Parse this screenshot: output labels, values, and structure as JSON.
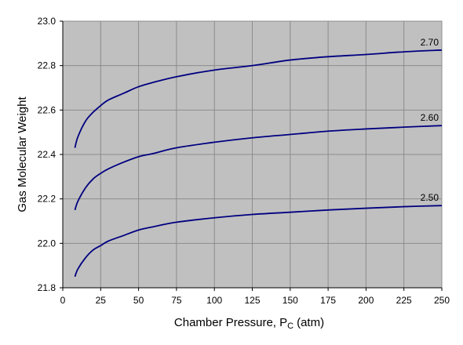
{
  "chart_data": {
    "type": "line",
    "xlabel": "Chamber Pressure, P",
    "xlabel_subscript": "C",
    "xlabel_unit": "(atm)",
    "ylabel": "Gas Molecular Weight",
    "xlim": [
      0,
      250
    ],
    "ylim": [
      21.8,
      23.0
    ],
    "x_ticks": [
      0,
      25,
      50,
      75,
      100,
      125,
      150,
      175,
      200,
      225,
      250
    ],
    "y_ticks": [
      21.8,
      22.0,
      22.2,
      22.4,
      22.6,
      22.8,
      23.0
    ],
    "x_tick_labels": [
      "0",
      "25",
      "50",
      "75",
      "100",
      "125",
      "150",
      "175",
      "200",
      "225",
      "250"
    ],
    "y_tick_labels": [
      "21.8",
      "22.0",
      "22.2",
      "22.4",
      "22.6",
      "22.8",
      "23.0"
    ],
    "grid": true,
    "plot_background": "#c0c0c0",
    "series_color": "#000080",
    "x": [
      8,
      10,
      15,
      20,
      25,
      30,
      40,
      50,
      60,
      75,
      100,
      125,
      150,
      175,
      200,
      225,
      250
    ],
    "series": [
      {
        "name": "2.70",
        "values": [
          22.43,
          22.48,
          22.55,
          22.59,
          22.62,
          22.645,
          22.675,
          22.705,
          22.725,
          22.75,
          22.78,
          22.8,
          22.825,
          22.84,
          22.85,
          22.862,
          22.87
        ]
      },
      {
        "name": "2.60",
        "values": [
          22.15,
          22.19,
          22.25,
          22.29,
          22.315,
          22.335,
          22.365,
          22.39,
          22.405,
          22.43,
          22.455,
          22.475,
          22.49,
          22.505,
          22.515,
          22.523,
          22.53
        ]
      },
      {
        "name": "2.50",
        "values": [
          21.85,
          21.885,
          21.935,
          21.97,
          21.99,
          22.01,
          22.035,
          22.06,
          22.075,
          22.095,
          22.115,
          22.13,
          22.14,
          22.15,
          22.158,
          22.165,
          22.17
        ]
      }
    ]
  }
}
